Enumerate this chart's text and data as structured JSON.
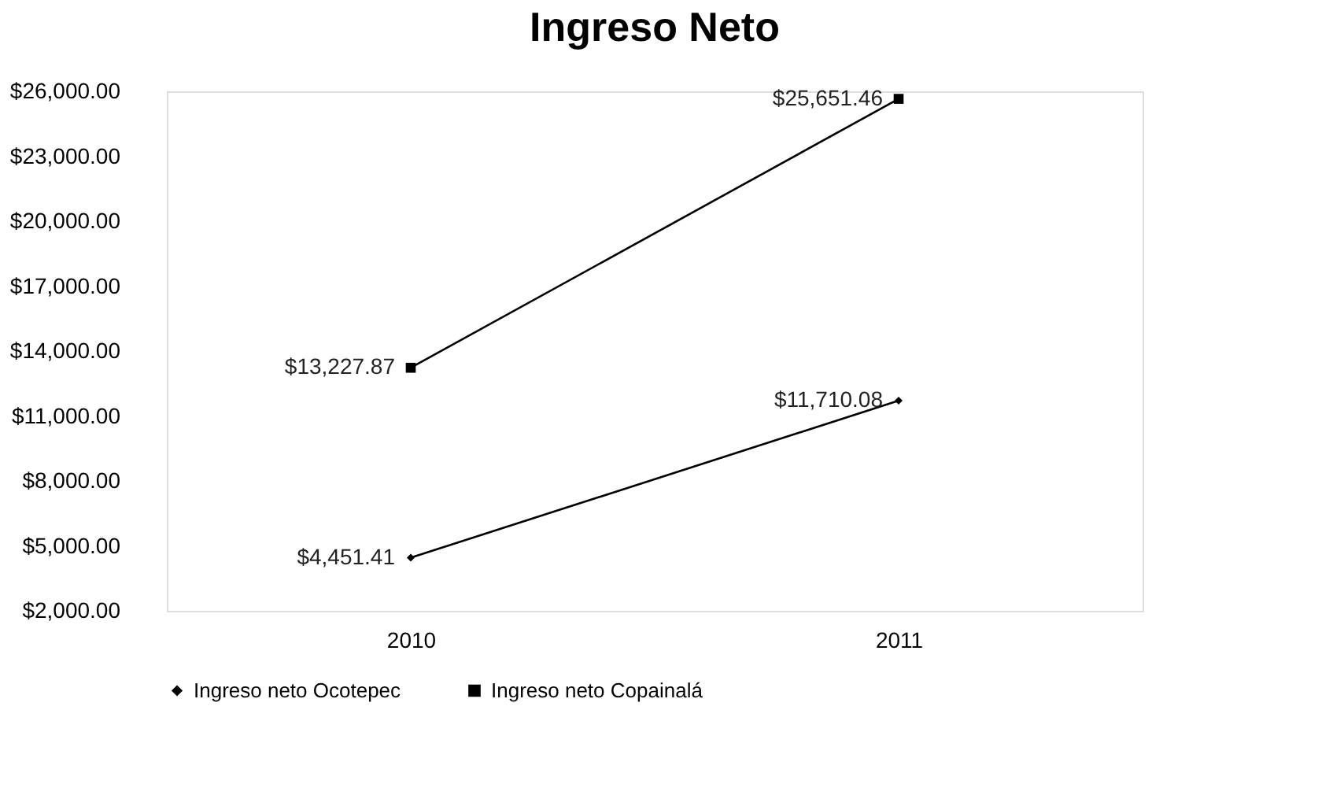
{
  "chart_data": {
    "type": "line",
    "title": "Ingreso Neto",
    "categories": [
      "2010",
      "2011"
    ],
    "series": [
      {
        "name": "Ingreso neto Ocotepec",
        "color": "#000000",
        "marker": "diamond",
        "values": [
          4451.41,
          11710.08
        ],
        "value_labels": [
          "$4,451.41",
          "$11,710.08"
        ]
      },
      {
        "name": "Ingreso neto Copainalá",
        "color": "#000000",
        "marker": "square",
        "values": [
          13227.87,
          25651.46
        ],
        "value_labels": [
          "$13,227.87",
          "$25,651.46"
        ]
      }
    ],
    "ylim": [
      2000,
      26000
    ],
    "yticks": [
      {
        "value": 2000,
        "label": "$2,000.00"
      },
      {
        "value": 5000,
        "label": "$5,000.00"
      },
      {
        "value": 8000,
        "label": "$8,000.00"
      },
      {
        "value": 11000,
        "label": "$11,000.00"
      },
      {
        "value": 14000,
        "label": "$14,000.00"
      },
      {
        "value": 17000,
        "label": "$17,000.00"
      },
      {
        "value": 20000,
        "label": "$20,000.00"
      },
      {
        "value": 23000,
        "label": "$23,000.00"
      },
      {
        "value": 26000,
        "label": "$26,000.00"
      }
    ],
    "grid": false,
    "legend": "bottom",
    "line_style": "solid"
  }
}
